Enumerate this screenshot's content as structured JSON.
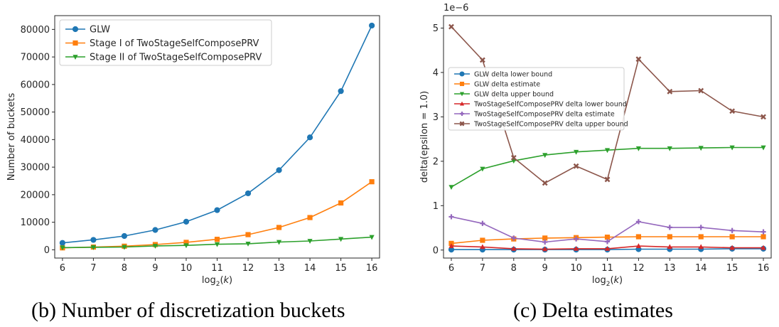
{
  "chart_data": [
    {
      "type": "line",
      "caption": "(b) Number of discretization buckets",
      "xlabel": "log2(k)",
      "ylabel": "Number of buckets",
      "x": [
        6,
        7,
        8,
        9,
        10,
        11,
        12,
        13,
        14,
        15,
        16
      ],
      "xlim": [
        5.75,
        16.25
      ],
      "ylim": [
        -3000,
        85000
      ],
      "yticks": [
        0,
        10000,
        20000,
        30000,
        40000,
        50000,
        60000,
        70000,
        80000
      ],
      "legend": "top-left",
      "grid": false,
      "series": [
        {
          "name": "GLW",
          "color": "#1f77b4",
          "marker": "circle",
          "values": [
            2500,
            3600,
            5000,
            7200,
            10200,
            14400,
            20500,
            28900,
            40800,
            57600,
            81400
          ]
        },
        {
          "name": "Stage I of TwoStageSelfComposePRV",
          "color": "#ff7f0e",
          "marker": "square",
          "values": [
            700,
            1000,
            1300,
            1900,
            2700,
            3800,
            5500,
            8100,
            11700,
            17000,
            24700
          ]
        },
        {
          "name": "Stage II of TwoStageSelfComposePRV",
          "color": "#2ca02c",
          "marker": "triangle-down",
          "values": [
            800,
            900,
            1000,
            1400,
            1600,
            2000,
            2200,
            2800,
            3200,
            3900,
            4600
          ]
        }
      ]
    },
    {
      "type": "line",
      "caption": "(c) Delta estimates",
      "xlabel": "log2(k)",
      "ylabel": "delta(epsilon = 1.0)",
      "scale_label": "1e−6",
      "x": [
        6,
        7,
        8,
        9,
        10,
        11,
        12,
        13,
        14,
        15,
        16
      ],
      "xlim": [
        5.75,
        16.25
      ],
      "ylim": [
        -0.18,
        5.28
      ],
      "yticks": [
        0,
        1,
        2,
        3,
        4,
        5
      ],
      "legend": "upper-left (inset)",
      "grid": false,
      "series": [
        {
          "name": "GLW delta lower bound",
          "color": "#1f77b4",
          "marker": "circle",
          "values": [
            0.01,
            0.01,
            0.01,
            0.01,
            0.01,
            0.01,
            0.02,
            0.02,
            0.02,
            0.03,
            0.03
          ]
        },
        {
          "name": "GLW delta estimate",
          "color": "#ff7f0e",
          "marker": "square",
          "values": [
            0.15,
            0.22,
            0.25,
            0.27,
            0.28,
            0.29,
            0.3,
            0.3,
            0.3,
            0.3,
            0.3
          ]
        },
        {
          "name": "GLW delta upper bound",
          "color": "#2ca02c",
          "marker": "triangle-down",
          "values": [
            1.42,
            1.83,
            2.01,
            2.14,
            2.21,
            2.25,
            2.29,
            2.29,
            2.3,
            2.31,
            2.31
          ]
        },
        {
          "name": "TwoStageSelfComposePRV delta lower bound",
          "color": "#d62728",
          "marker": "triangle-up",
          "values": [
            0.09,
            0.07,
            0.03,
            0.02,
            0.03,
            0.03,
            0.09,
            0.07,
            0.07,
            0.05,
            0.05
          ]
        },
        {
          "name": "TwoStageSelfComposePRV delta estimate",
          "color": "#9467bd",
          "marker": "plus",
          "values": [
            0.75,
            0.6,
            0.27,
            0.18,
            0.25,
            0.19,
            0.64,
            0.51,
            0.51,
            0.44,
            0.41
          ]
        },
        {
          "name": "TwoStageSelfComposePRV delta upper bound",
          "color": "#8c564b",
          "marker": "x",
          "values": [
            5.03,
            4.28,
            2.08,
            1.51,
            1.89,
            1.59,
            4.3,
            3.57,
            3.59,
            3.13,
            3.0
          ]
        }
      ]
    }
  ]
}
